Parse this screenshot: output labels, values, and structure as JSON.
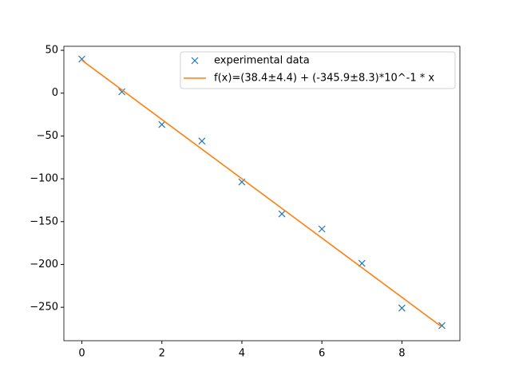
{
  "chart_data": {
    "type": "scatter",
    "series": [
      {
        "name": "experimental data",
        "type": "scatter",
        "marker": "x",
        "color": "#1f77b4",
        "x": [
          0,
          1,
          2,
          3,
          4,
          5,
          6,
          7,
          8,
          9
        ],
        "values": [
          39.8,
          1.6,
          -36.6,
          -56,
          -103.7,
          -141,
          -158.6,
          -198.7,
          -250.9,
          -271.4
        ]
      },
      {
        "name": "f(x)=(38.4±4.4) + (-345.9±8.3)*10^-1 * x",
        "type": "line",
        "color": "#ff7f0e",
        "x": [
          0,
          9
        ],
        "values": [
          38.4,
          -272.91
        ]
      }
    ],
    "xlim": [
      -0.45,
      9.45
    ],
    "xticks": [
      0,
      2,
      4,
      6,
      8
    ],
    "ylim": [
      -289,
      54.7
    ],
    "yticks": [
      50,
      0,
      {
        "value": -50,
        "label": "−50"
      },
      {
        "value": -100,
        "label": "−100"
      },
      {
        "value": -150,
        "label": "−150"
      },
      {
        "value": -200,
        "label": "−200"
      },
      {
        "value": -250,
        "label": "−250"
      }
    ],
    "grid": false,
    "legend": "upper right"
  }
}
